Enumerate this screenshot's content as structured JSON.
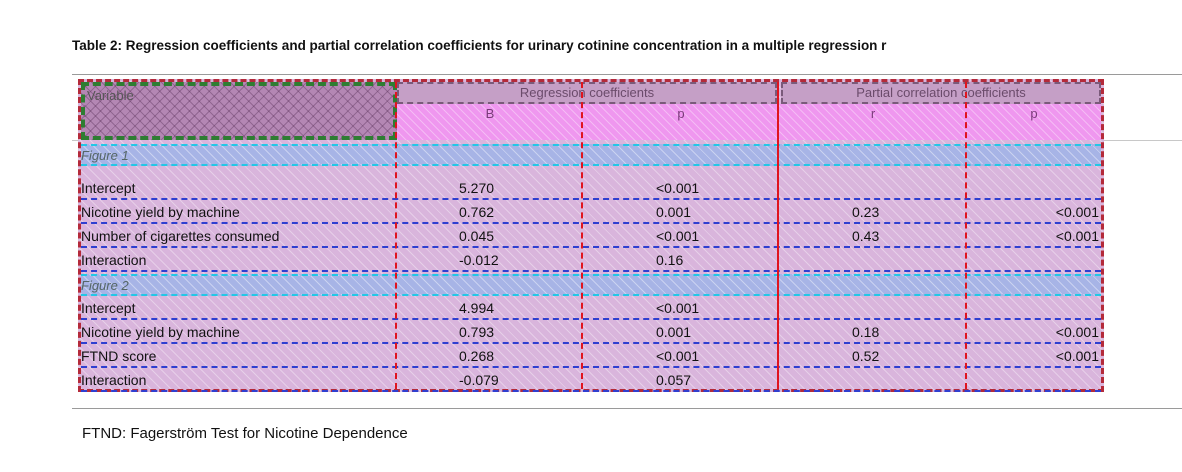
{
  "caption": "Table 2: Regression coefficients and partial correlation coefficients for urinary cotinine concentration in a multiple regression r",
  "headers": {
    "variable": "Variable",
    "regression_group": "Regression coefficients",
    "partial_group": "Partial correlation coefficients",
    "b": "B",
    "p1": "p",
    "r": "r",
    "p2": "p"
  },
  "sections": [
    {
      "title": "Figure 1",
      "rows": [
        {
          "label": "Intercept",
          "b": "5.270",
          "p": "<0.001",
          "r": "",
          "pp": ""
        },
        {
          "label": "Nicotine yield by machine",
          "b": "0.762",
          "p": "0.001",
          "r": "0.23",
          "pp": "<0.001"
        },
        {
          "label": "Number of cigarettes consumed",
          "b": "0.045",
          "p": "<0.001",
          "r": "0.43",
          "pp": "<0.001"
        },
        {
          "label": "Interaction",
          "b": "-0.012",
          "p": "0.16",
          "r": "",
          "pp": ""
        }
      ]
    },
    {
      "title": "Figure 2",
      "rows": [
        {
          "label": "Intercept",
          "b": "4.994",
          "p": "<0.001",
          "r": "",
          "pp": ""
        },
        {
          "label": "Nicotine yield by machine",
          "b": "0.793",
          "p": "0.001",
          "r": "0.18",
          "pp": "<0.001"
        },
        {
          "label": "FTND score",
          "b": "0.268",
          "p": "<0.001",
          "r": "0.52",
          "pp": "<0.001"
        },
        {
          "label": "Interaction",
          "b": "-0.079",
          "p": "0.057",
          "r": "",
          "pp": ""
        }
      ]
    }
  ],
  "footnote": "FTND: Fagerström Test for Nicotine Dependence"
}
